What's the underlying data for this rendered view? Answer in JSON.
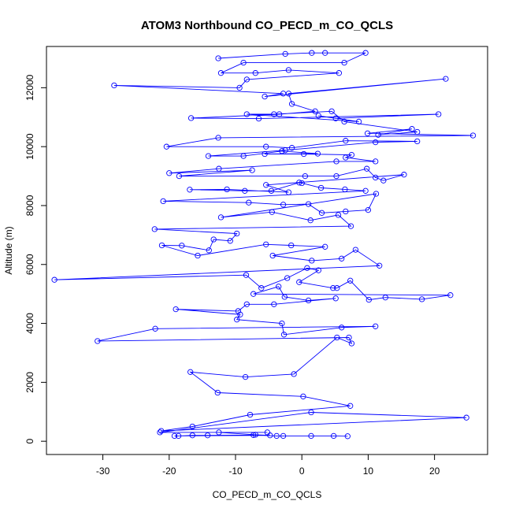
{
  "chart_data": {
    "type": "line",
    "title": "ATOM3 Northbound CO_PECD_m_CO_QCLS",
    "xlabel": "CO_PECD_m_CO_QCLS",
    "ylabel": "Altitude (m)",
    "xlim": [
      -38.5,
      28
    ],
    "ylim": [
      -450,
      13400
    ],
    "x_ticks": [
      -30,
      -20,
      -10,
      0,
      10,
      20
    ],
    "x_tick_labels": [
      "-30",
      "-20",
      "-10",
      "0",
      "10",
      "20"
    ],
    "y_ticks": [
      0,
      2000,
      4000,
      6000,
      8000,
      10000,
      12000
    ],
    "y_tick_labels": [
      "0",
      "2000",
      "4000",
      "6000",
      "8000",
      "10000",
      "12000"
    ],
    "grid": false,
    "legend": "none",
    "series": [
      {
        "color": "#0000ff",
        "points": [
          [
            -12.6,
            13000
          ],
          [
            -2.5,
            13150
          ],
          [
            1.5,
            13180
          ],
          [
            3.5,
            13180
          ],
          [
            9.6,
            13180
          ],
          [
            6.4,
            12850
          ],
          [
            -8.8,
            12850
          ],
          [
            -12.2,
            12500
          ],
          [
            -7.0,
            12500
          ],
          [
            -2.0,
            12600
          ],
          [
            5.6,
            12500
          ],
          [
            -8.3,
            12280
          ],
          [
            -9.4,
            12000
          ],
          [
            -28.3,
            12080
          ],
          [
            -2.8,
            11800
          ],
          [
            -5.6,
            11700
          ],
          [
            21.7,
            12300
          ],
          [
            -2.0,
            11800
          ],
          [
            -1.5,
            11450
          ],
          [
            2.0,
            11200
          ],
          [
            -3.4,
            11100
          ],
          [
            -16.7,
            10970
          ],
          [
            -6.5,
            10950
          ],
          [
            20.6,
            11100
          ],
          [
            5.1,
            10960
          ],
          [
            2.5,
            11050
          ],
          [
            8.6,
            10850
          ],
          [
            -8.3,
            11100
          ],
          [
            -4.2,
            11100
          ],
          [
            4.5,
            11200
          ],
          [
            6.4,
            10850
          ],
          [
            17.4,
            10500
          ],
          [
            11.5,
            10400
          ],
          [
            16.6,
            10600
          ],
          [
            9.9,
            10450
          ],
          [
            25.8,
            10380
          ],
          [
            -12.6,
            10300
          ],
          [
            -20.4,
            10000
          ],
          [
            -5.4,
            10000
          ],
          [
            -1.5,
            9960
          ],
          [
            6.6,
            10200
          ],
          [
            17.4,
            10180
          ],
          [
            11.1,
            10150
          ],
          [
            -2.5,
            9880
          ],
          [
            -14.1,
            9680
          ],
          [
            -8.8,
            9680
          ],
          [
            -3.0,
            9850
          ],
          [
            2.4,
            9760
          ],
          [
            -5.6,
            9750
          ],
          [
            0.3,
            9750
          ],
          [
            7.5,
            9720
          ],
          [
            6.6,
            9630
          ],
          [
            11.1,
            9500
          ],
          [
            5.2,
            9500
          ],
          [
            -12.5,
            9250
          ],
          [
            -20.0,
            9100
          ],
          [
            -7.5,
            9200
          ],
          [
            -18.5,
            9000
          ],
          [
            0.5,
            9000
          ],
          [
            5.2,
            9000
          ],
          [
            9.8,
            9250
          ],
          [
            11.1,
            8950
          ],
          [
            12.3,
            8850
          ],
          [
            15.4,
            9050
          ],
          [
            -5.4,
            8700
          ],
          [
            -2.0,
            8450
          ],
          [
            -11.3,
            8550
          ],
          [
            -16.9,
            8540
          ],
          [
            -8.6,
            8500
          ],
          [
            -4.6,
            8500
          ],
          [
            -0.4,
            8780
          ],
          [
            0.0,
            8760
          ],
          [
            2.9,
            8600
          ],
          [
            6.5,
            8550
          ],
          [
            9.6,
            8500
          ],
          [
            -20.9,
            8150
          ],
          [
            -8.0,
            8100
          ],
          [
            -2.8,
            8030
          ],
          [
            1.0,
            8050
          ],
          [
            3.0,
            7750
          ],
          [
            6.6,
            7800
          ],
          [
            10.0,
            7850
          ],
          [
            11.2,
            8400
          ],
          [
            -12.2,
            7600
          ],
          [
            -4.5,
            7780
          ],
          [
            1.3,
            7500
          ],
          [
            5.5,
            7680
          ],
          [
            7.4,
            7300
          ],
          [
            -22.2,
            7200
          ],
          [
            -9.8,
            7050
          ],
          [
            -10.8,
            6800
          ],
          [
            -13.3,
            6850
          ],
          [
            -14.0,
            6480
          ],
          [
            -18.1,
            6640
          ],
          [
            -21.1,
            6650
          ],
          [
            -15.7,
            6300
          ],
          [
            -5.4,
            6680
          ],
          [
            -1.6,
            6650
          ],
          [
            3.5,
            6600
          ],
          [
            -4.4,
            6300
          ],
          [
            1.5,
            6130
          ],
          [
            6.0,
            6200
          ],
          [
            8.1,
            6500
          ],
          [
            11.7,
            5960
          ],
          [
            -37.3,
            5480
          ],
          [
            -8.4,
            5640
          ],
          [
            -6.1,
            5200
          ],
          [
            -2.2,
            5540
          ],
          [
            0.8,
            5880
          ],
          [
            2.5,
            5800
          ],
          [
            -0.4,
            5400
          ],
          [
            4.7,
            5200
          ],
          [
            5.3,
            5200
          ],
          [
            7.3,
            5450
          ],
          [
            10.1,
            4800
          ],
          [
            12.6,
            4880
          ],
          [
            18.1,
            4820
          ],
          [
            22.4,
            4960
          ],
          [
            -7.3,
            5000
          ],
          [
            -3.5,
            5250
          ],
          [
            -2.6,
            4900
          ],
          [
            1.0,
            4780
          ],
          [
            5.1,
            4850
          ],
          [
            -4.2,
            4650
          ],
          [
            -8.3,
            4650
          ],
          [
            -9.6,
            4420
          ],
          [
            -19.0,
            4480
          ],
          [
            -9.3,
            4300
          ],
          [
            -9.8,
            4130
          ],
          [
            -3.0,
            4000
          ],
          [
            -2.7,
            3620
          ],
          [
            6.0,
            3860
          ],
          [
            11.1,
            3900
          ],
          [
            -22.1,
            3820
          ],
          [
            -30.8,
            3400
          ],
          [
            7.1,
            3520
          ],
          [
            7.5,
            3320
          ],
          [
            5.3,
            3520
          ],
          [
            -1.2,
            2280
          ],
          [
            -8.5,
            2180
          ],
          [
            -16.8,
            2350
          ],
          [
            -12.7,
            1650
          ],
          [
            0.2,
            1520
          ],
          [
            7.3,
            1200
          ],
          [
            -7.8,
            900
          ],
          [
            -16.5,
            500
          ],
          [
            -21.2,
            350
          ],
          [
            24.8,
            800
          ],
          [
            1.4,
            980
          ],
          [
            -21.4,
            300
          ],
          [
            -5.2,
            300
          ],
          [
            -12.5,
            300
          ],
          [
            -7.0,
            220
          ],
          [
            -4.8,
            200
          ],
          [
            -19.2,
            180
          ],
          [
            -18.6,
            180
          ],
          [
            -16.5,
            200
          ],
          [
            -14.2,
            200
          ],
          [
            -7.3,
            210
          ],
          [
            -3.8,
            180
          ],
          [
            -2.8,
            180
          ],
          [
            1.4,
            180
          ],
          [
            4.8,
            180
          ],
          [
            6.9,
            170
          ]
        ]
      }
    ]
  }
}
